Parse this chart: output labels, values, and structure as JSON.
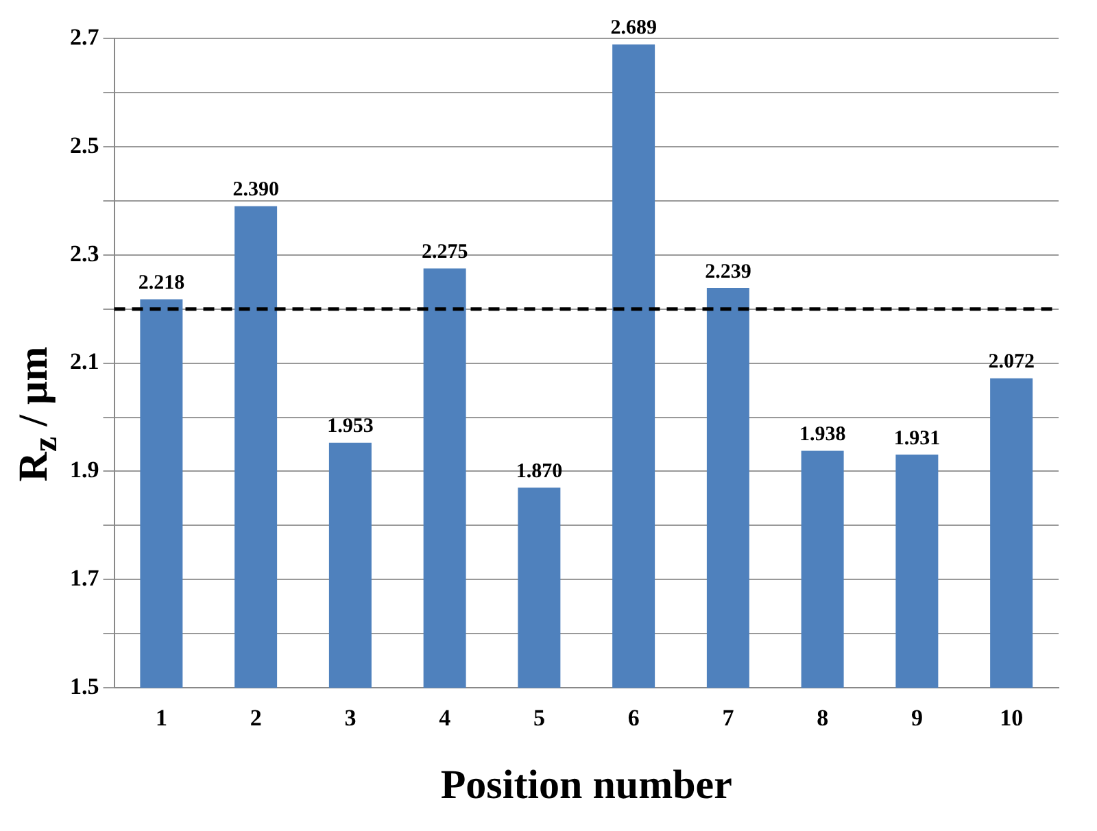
{
  "chart_data": {
    "type": "bar",
    "xlabel": "Position number",
    "ylabel": "R$_{z}$ / µm",
    "categories": [
      "1",
      "2",
      "3",
      "4",
      "5",
      "6",
      "7",
      "8",
      "9",
      "10"
    ],
    "values": [
      2.218,
      2.39,
      1.953,
      2.275,
      1.87,
      2.689,
      2.239,
      1.938,
      1.931,
      2.072
    ],
    "color": "#4f81bd",
    "value_labels": [
      "2.218",
      "2.390",
      "1.953",
      "2.275",
      "1.870",
      "2.689",
      "2.239",
      "1.938",
      "1.931",
      "2.072"
    ],
    "ylim": [
      1.5,
      2.7
    ],
    "yticks": [
      1.5,
      {
        "value": 1.6,
        "label": null
      },
      1.7,
      {
        "value": 1.8,
        "label": null
      },
      1.9,
      {
        "value": 2.0,
        "label": null
      },
      2.1,
      {
        "value": 2.2,
        "label": null
      },
      2.3,
      {
        "value": 2.4,
        "label": null
      },
      2.5,
      {
        "value": 2.6,
        "label": null
      },
      2.7
    ],
    "grid": "y",
    "ref_lines": [
      {
        "axis": "y",
        "value": 2.2,
        "color": "#000000",
        "line_style": "dashed"
      }
    ]
  }
}
